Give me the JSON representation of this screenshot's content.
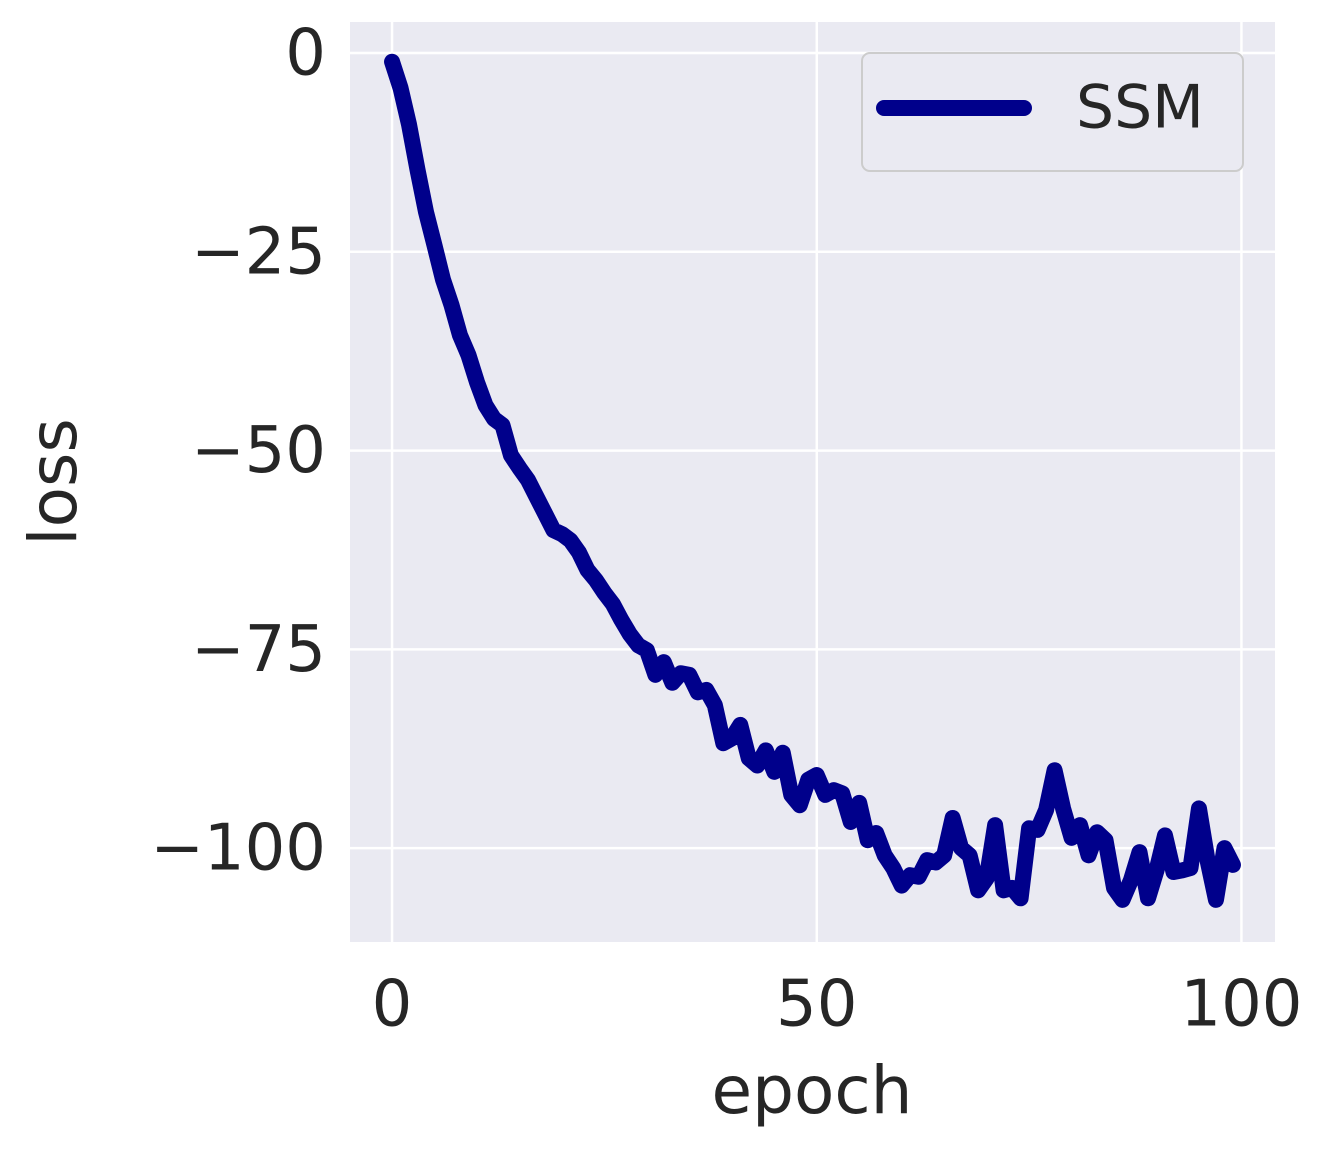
{
  "chart_data": {
    "type": "line",
    "x_label": "epoch",
    "y_label": "loss",
    "x": [
      0,
      1,
      2,
      3,
      4,
      5,
      6,
      7,
      8,
      9,
      10,
      11,
      12,
      13,
      14,
      15,
      16,
      17,
      18,
      19,
      20,
      21,
      22,
      23,
      24,
      25,
      26,
      27,
      28,
      29,
      30,
      31,
      32,
      33,
      34,
      35,
      36,
      37,
      38,
      39,
      40,
      41,
      42,
      43,
      44,
      45,
      46,
      47,
      48,
      49,
      50,
      51,
      52,
      53,
      54,
      55,
      56,
      57,
      58,
      59,
      60,
      61,
      62,
      63,
      64,
      65,
      66,
      67,
      68,
      69,
      70,
      71,
      72,
      73,
      74,
      75,
      76,
      77,
      78,
      79,
      80,
      81,
      82,
      83,
      84,
      85,
      86,
      87,
      88,
      89,
      90,
      91,
      92,
      93,
      94,
      95,
      96,
      97,
      98,
      99
    ],
    "series": [
      {
        "name": "SSM",
        "color": "#00008b",
        "values": [
          -1.1,
          -4.4,
          -9,
          -14.7,
          -20,
          -24.2,
          -28.5,
          -31.7,
          -35.5,
          -38,
          -41.4,
          -44.3,
          -46,
          -46.8,
          -50.6,
          -52.2,
          -53.7,
          -55.8,
          -57.9,
          -60,
          -60.5,
          -61.3,
          -62.8,
          -65,
          -66.3,
          -67.9,
          -69.3,
          -71.3,
          -73.1,
          -74.5,
          -75.1,
          -78.2,
          -76.6,
          -79.2,
          -78,
          -78.2,
          -80.4,
          -80.1,
          -82,
          -86.8,
          -86.2,
          -84.5,
          -88.7,
          -89.6,
          -87.7,
          -90.4,
          -88,
          -93.3,
          -94.6,
          -91.4,
          -90.8,
          -93.3,
          -92.7,
          -93.1,
          -96.7,
          -94.3,
          -99,
          -98.1,
          -100.9,
          -102.5,
          -104.7,
          -103.4,
          -103.6,
          -101.5,
          -101.8,
          -100.9,
          -96.2,
          -100,
          -100.9,
          -105.3,
          -103.8,
          -97.1,
          -105.3,
          -105,
          -106.3,
          -97.5,
          -97.7,
          -95.2,
          -90.2,
          -95,
          -98.7,
          -97.1,
          -100.9,
          -98,
          -99,
          -105,
          -106.5,
          -104,
          -100.5,
          -106.3,
          -102.8,
          -98.4,
          -103,
          -102.8,
          -102.5,
          -95,
          -101.5,
          -106.5,
          -100,
          -102.1
        ]
      }
    ],
    "xlim": [
      -4.95,
      103.95
    ],
    "ylim": [
      -111.8,
      3.9
    ],
    "xticks": [
      0,
      50,
      100
    ],
    "yticks": [
      0,
      {
        "value": -25,
        "label": "−25"
      },
      {
        "value": -50,
        "label": "−50"
      },
      {
        "value": -75,
        "label": "−75"
      },
      {
        "value": -100,
        "label": "−100"
      }
    ],
    "grid": true,
    "legend": "upper right"
  }
}
